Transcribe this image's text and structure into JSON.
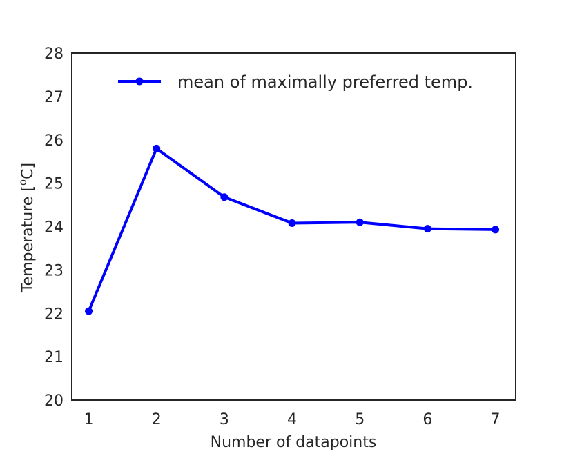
{
  "chart_data": {
    "type": "line",
    "title": "",
    "xlabel": "Number of datapoints",
    "ylabel_main": "Temperature [",
    "ylabel_sup": "o",
    "ylabel_end": "C]",
    "x": [
      1,
      2,
      3,
      4,
      5,
      6,
      7
    ],
    "xlim": [
      0.75,
      7.3
    ],
    "ylim": [
      20,
      28
    ],
    "x_ticks": [
      "1",
      "2",
      "3",
      "4",
      "5",
      "6",
      "7"
    ],
    "y_ticks": [
      "20",
      "21",
      "22",
      "23",
      "24",
      "25",
      "26",
      "27",
      "28"
    ],
    "series": [
      {
        "name": "mean of maximally preferred temp.",
        "values": [
          22.05,
          25.8,
          24.68,
          24.08,
          24.1,
          23.95,
          23.93
        ],
        "color": "#0000ff",
        "marker": "circle"
      }
    ],
    "legend_position": "top-right",
    "grid": false
  }
}
